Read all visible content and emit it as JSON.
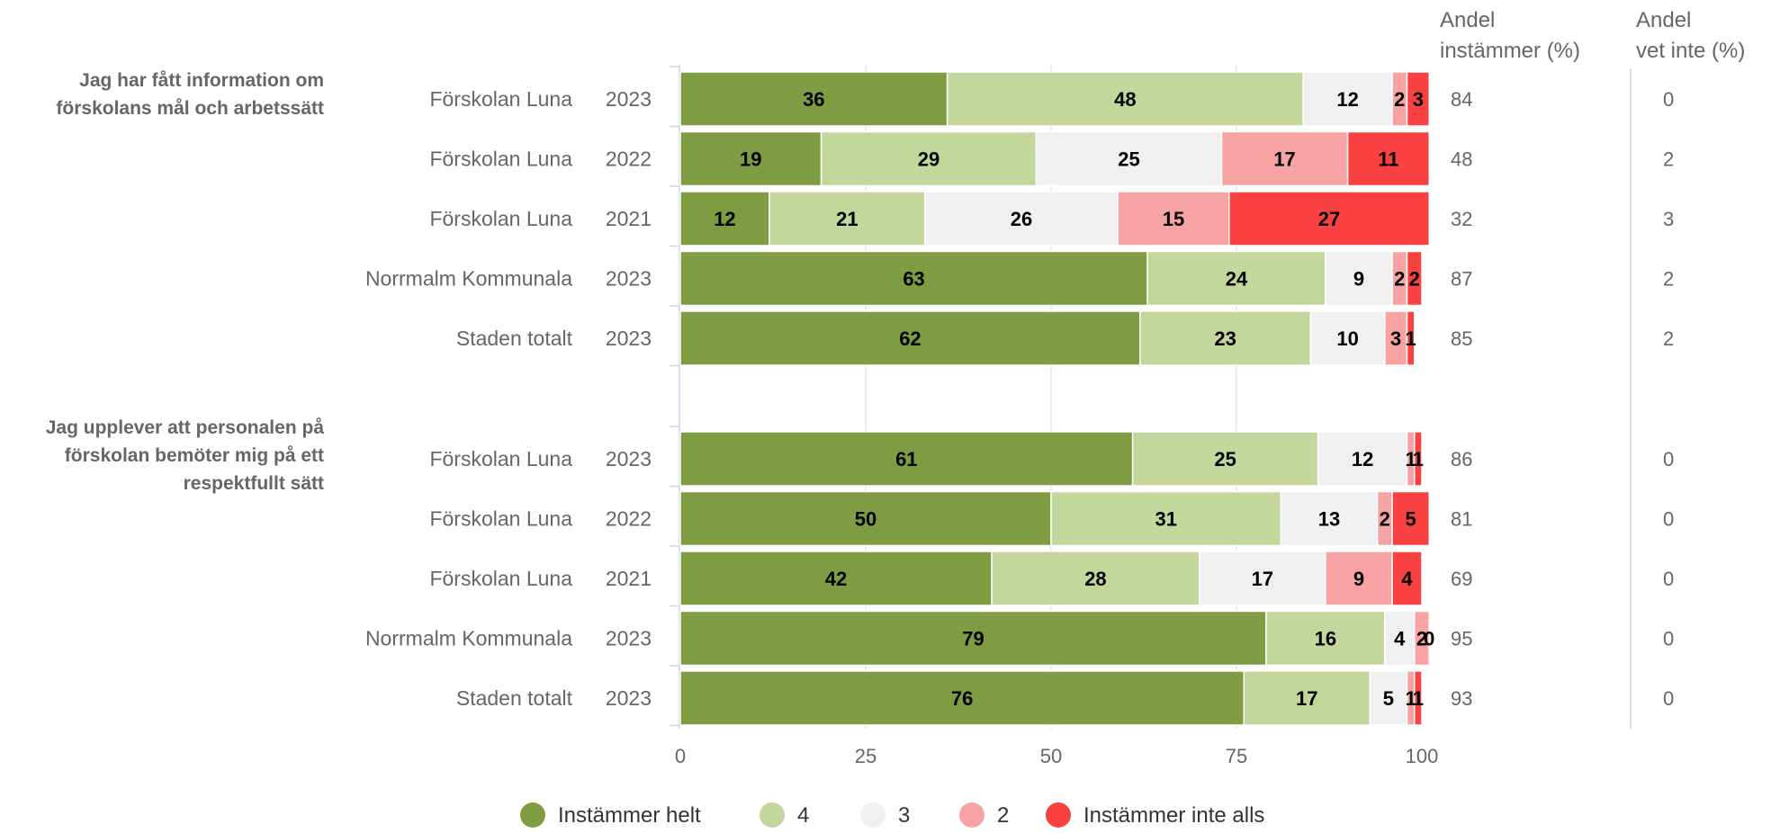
{
  "chart_data": {
    "type": "bar",
    "orientation": "horizontal",
    "stacked": true,
    "xlim": [
      0,
      100
    ],
    "x_ticks": [
      "0",
      "25",
      "50",
      "75",
      "100"
    ],
    "column_headers": {
      "agree": [
        "Andel",
        "instämmer (%)"
      ],
      "dont_know": [
        "Andel",
        "vet inte (%)"
      ]
    },
    "legend": {
      "position": "bottom",
      "items": [
        {
          "label": "Instämmer helt",
          "color": "#7f9c42"
        },
        {
          "label": "4",
          "color": "#c3d69b"
        },
        {
          "label": "3",
          "color": "#f0f0f0"
        },
        {
          "label": "2",
          "color": "#f7a3a3"
        },
        {
          "label": "Instämmer inte alls",
          "color": "#fa4141"
        }
      ]
    },
    "groups": [
      {
        "question": [
          "Jag har fått information om",
          "förskolans mål och arbetssätt"
        ],
        "rows": [
          {
            "unit": "Förskolan Luna",
            "year": "2023",
            "values": [
              36,
              48,
              12,
              2,
              3
            ],
            "agree": "84",
            "dont_know": "0"
          },
          {
            "unit": "Förskolan Luna",
            "year": "2022",
            "values": [
              19,
              29,
              25,
              17,
              11
            ],
            "agree": "48",
            "dont_know": "2"
          },
          {
            "unit": "Förskolan Luna",
            "year": "2021",
            "values": [
              12,
              21,
              26,
              15,
              27
            ],
            "agree": "32",
            "dont_know": "3"
          },
          {
            "unit": "Norrmalm Kommunala",
            "year": "2023",
            "values": [
              63,
              24,
              9,
              2,
              2
            ],
            "agree": "87",
            "dont_know": "2"
          },
          {
            "unit": "Staden totalt",
            "year": "2023",
            "values": [
              62,
              23,
              10,
              3,
              1
            ],
            "agree": "85",
            "dont_know": "2"
          }
        ]
      },
      {
        "question": [
          "Jag upplever att personalen på",
          "förskolan bemöter mig på ett",
          "respektfullt sätt"
        ],
        "rows": [
          {
            "unit": "Förskolan Luna",
            "year": "2023",
            "values": [
              61,
              25,
              12,
              1,
              1
            ],
            "agree": "86",
            "dont_know": "0"
          },
          {
            "unit": "Förskolan Luna",
            "year": "2022",
            "values": [
              50,
              31,
              13,
              2,
              5
            ],
            "agree": "81",
            "dont_know": "0"
          },
          {
            "unit": "Förskolan Luna",
            "year": "2021",
            "values": [
              42,
              28,
              17,
              9,
              4
            ],
            "agree": "69",
            "dont_know": "0"
          },
          {
            "unit": "Norrmalm Kommunala",
            "year": "2023",
            "values": [
              79,
              16,
              4,
              2,
              0
            ],
            "agree": "95",
            "dont_know": "0"
          },
          {
            "unit": "Staden totalt",
            "year": "2023",
            "values": [
              76,
              17,
              5,
              1,
              1
            ],
            "agree": "93",
            "dont_know": "0"
          }
        ]
      }
    ]
  }
}
